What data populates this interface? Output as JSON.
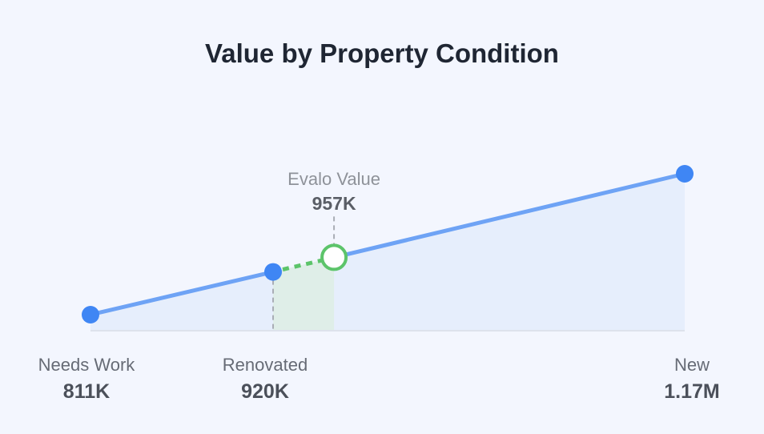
{
  "chart_data": {
    "type": "line",
    "title": "Value by Property Condition",
    "points": [
      {
        "label": "Needs Work",
        "value": 811,
        "display": "811K"
      },
      {
        "label": "Renovated",
        "value": 920,
        "display": "920K"
      },
      {
        "label": "New",
        "value": 1170,
        "display": "1.17M"
      }
    ],
    "estimate": {
      "label": "Evalo Value",
      "value": 957,
      "display": "957K"
    },
    "unit": "thousands",
    "colors": {
      "line": "#6ea3f5",
      "point": "#3f86f4",
      "fill": "#e6eefc",
      "estimate": "#5cc46a",
      "estimate_fill": "#dfeee8"
    }
  }
}
